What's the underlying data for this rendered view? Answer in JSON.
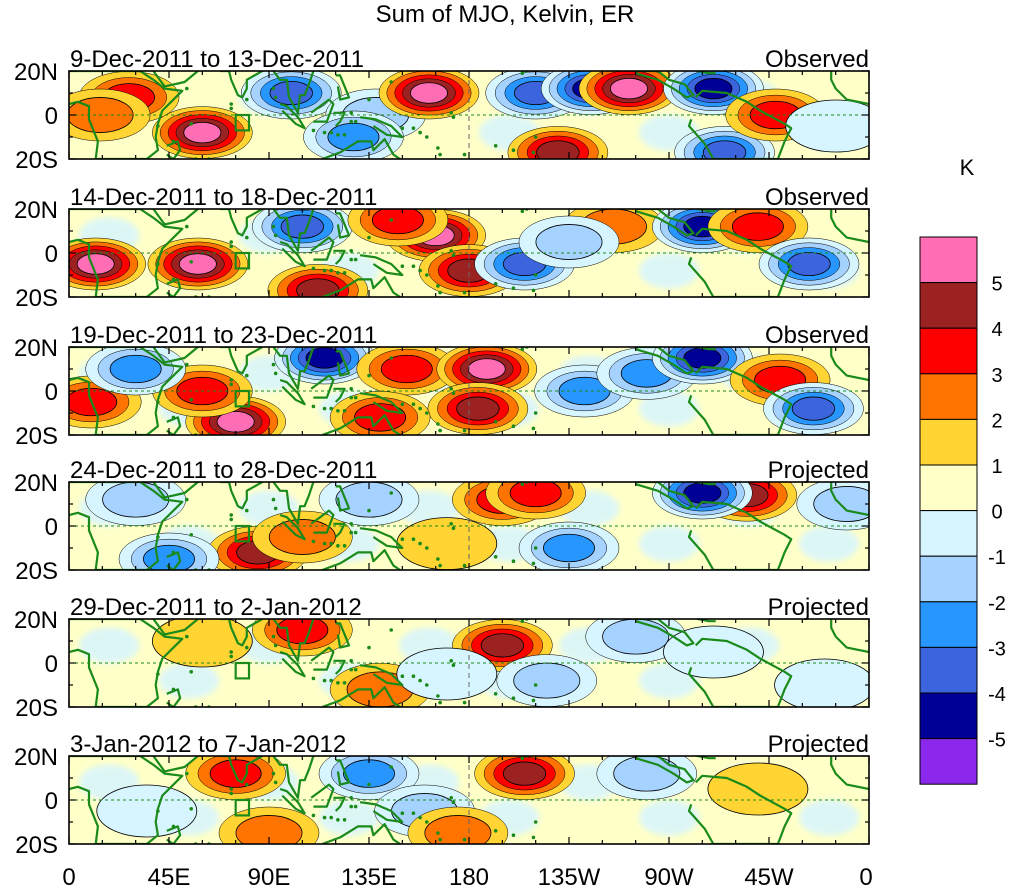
{
  "title": "Sum of MJO, Kelvin, ER",
  "colorbar": {
    "unit_label": "K",
    "levels": [
      "5",
      "4",
      "3",
      "2",
      "1",
      "0",
      "-1",
      "-2",
      "-3",
      "-4",
      "-5"
    ],
    "colors": [
      "#ff6eb4",
      "#9c2121",
      "#ff0000",
      "#ff7300",
      "#ffd433",
      "#ffffc8",
      "#d7f5ff",
      "#a5d2ff",
      "#2896ff",
      "#3c64dc",
      "#000096",
      "#8c28eb"
    ]
  },
  "axes": {
    "lat_labels": [
      "20N",
      "0",
      "20S"
    ],
    "lon_labels": [
      "0",
      "45E",
      "90E",
      "135E",
      "180",
      "135W",
      "90W",
      "45W",
      "0"
    ],
    "lon_values": [
      0,
      45,
      90,
      135,
      180,
      225,
      270,
      315,
      360
    ],
    "lat_range": [
      -20,
      20
    ],
    "lon_range": [
      0,
      360
    ]
  },
  "panels": [
    {
      "period": "9-Dec-2011 to 13-Dec-2011",
      "status": "Observed",
      "features": [
        {
          "lon": 27,
          "lat": 8,
          "val": 3
        },
        {
          "lon": 14,
          "lat": 0,
          "val": 2
        },
        {
          "lon": 60,
          "lat": -8,
          "val": 5
        },
        {
          "lon": 100,
          "lat": 10,
          "val": -4
        },
        {
          "lon": 138,
          "lat": 0,
          "val": -2
        },
        {
          "lon": 162,
          "lat": 10,
          "val": 5
        },
        {
          "lon": 210,
          "lat": 10,
          "val": -4
        },
        {
          "lon": 235,
          "lat": 12,
          "val": -5
        },
        {
          "lon": 252,
          "lat": 12,
          "val": 5
        },
        {
          "lon": 290,
          "lat": 12,
          "val": -5
        },
        {
          "lon": 220,
          "lat": -17,
          "val": 4
        },
        {
          "lon": 128,
          "lat": -10,
          "val": -3
        },
        {
          "lon": 295,
          "lat": -17,
          "val": -4
        },
        {
          "lon": 318,
          "lat": 0,
          "val": 3
        },
        {
          "lon": 345,
          "lat": -5,
          "val": -1
        }
      ]
    },
    {
      "period": "14-Dec-2011 to 18-Dec-2011",
      "status": "Observed",
      "features": [
        {
          "lon": 12,
          "lat": -5,
          "val": 5
        },
        {
          "lon": 58,
          "lat": -5,
          "val": 5
        },
        {
          "lon": 105,
          "lat": 12,
          "val": -4
        },
        {
          "lon": 112,
          "lat": -17,
          "val": 4
        },
        {
          "lon": 165,
          "lat": 8,
          "val": 5
        },
        {
          "lon": 180,
          "lat": -8,
          "val": 4
        },
        {
          "lon": 205,
          "lat": -5,
          "val": -4
        },
        {
          "lon": 245,
          "lat": 12,
          "val": 2
        },
        {
          "lon": 285,
          "lat": 12,
          "val": -5
        },
        {
          "lon": 310,
          "lat": 12,
          "val": 3
        },
        {
          "lon": 333,
          "lat": -5,
          "val": -4
        },
        {
          "lon": 148,
          "lat": 15,
          "val": 3
        },
        {
          "lon": 225,
          "lat": 5,
          "val": -2
        }
      ]
    },
    {
      "period": "19-Dec-2011 to 23-Dec-2011",
      "status": "Observed",
      "features": [
        {
          "lon": 75,
          "lat": -14,
          "val": 5
        },
        {
          "lon": 60,
          "lat": 0,
          "val": 3
        },
        {
          "lon": 115,
          "lat": 15,
          "val": -5
        },
        {
          "lon": 152,
          "lat": 10,
          "val": 3
        },
        {
          "lon": 188,
          "lat": 10,
          "val": 5
        },
        {
          "lon": 184,
          "lat": -8,
          "val": 4
        },
        {
          "lon": 10,
          "lat": -5,
          "val": 3
        },
        {
          "lon": 30,
          "lat": 10,
          "val": -3
        },
        {
          "lon": 232,
          "lat": 0,
          "val": -3
        },
        {
          "lon": 260,
          "lat": 8,
          "val": -3
        },
        {
          "lon": 285,
          "lat": 15,
          "val": -5
        },
        {
          "lon": 320,
          "lat": 5,
          "val": 3
        },
        {
          "lon": 335,
          "lat": -8,
          "val": -4
        },
        {
          "lon": 140,
          "lat": -12,
          "val": 3
        }
      ]
    },
    {
      "period": "24-Dec-2011 to 28-Dec-2011",
      "status": "Projected",
      "features": [
        {
          "lon": 195,
          "lat": 12,
          "val": 3
        },
        {
          "lon": 210,
          "lat": 15,
          "val": 3
        },
        {
          "lon": 85,
          "lat": -12,
          "val": 4
        },
        {
          "lon": 105,
          "lat": -5,
          "val": 2
        },
        {
          "lon": 305,
          "lat": 14,
          "val": 4
        },
        {
          "lon": 285,
          "lat": 15,
          "val": -5
        },
        {
          "lon": 135,
          "lat": 12,
          "val": -2
        },
        {
          "lon": 225,
          "lat": -10,
          "val": -3
        },
        {
          "lon": 45,
          "lat": -15,
          "val": -3
        },
        {
          "lon": 30,
          "lat": 12,
          "val": -2
        },
        {
          "lon": 170,
          "lat": -8,
          "val": 1
        },
        {
          "lon": 350,
          "lat": 10,
          "val": -2
        }
      ]
    },
    {
      "period": "29-Dec-2011 to 2-Jan-2012",
      "status": "Projected",
      "features": [
        {
          "lon": 195,
          "lat": 8,
          "val": 4
        },
        {
          "lon": 140,
          "lat": -12,
          "val": 2
        },
        {
          "lon": 105,
          "lat": 15,
          "val": 3
        },
        {
          "lon": 170,
          "lat": -5,
          "val": -1
        },
        {
          "lon": 215,
          "lat": -8,
          "val": -2
        },
        {
          "lon": 255,
          "lat": 12,
          "val": -2
        },
        {
          "lon": 290,
          "lat": 5,
          "val": -1
        },
        {
          "lon": 60,
          "lat": 10,
          "val": 1
        },
        {
          "lon": 340,
          "lat": -10,
          "val": -1
        }
      ]
    },
    {
      "period": "3-Jan-2012 to 7-Jan-2012",
      "status": "Projected",
      "features": [
        {
          "lon": 205,
          "lat": 12,
          "val": 4
        },
        {
          "lon": 75,
          "lat": 12,
          "val": 3
        },
        {
          "lon": 135,
          "lat": 12,
          "val": -3
        },
        {
          "lon": 160,
          "lat": -5,
          "val": -2
        },
        {
          "lon": 260,
          "lat": 12,
          "val": -2
        },
        {
          "lon": 310,
          "lat": 5,
          "val": 1
        },
        {
          "lon": 90,
          "lat": -15,
          "val": 2
        },
        {
          "lon": 175,
          "lat": -15,
          "val": 2
        },
        {
          "lon": 35,
          "lat": -5,
          "val": -1
        }
      ]
    }
  ]
}
